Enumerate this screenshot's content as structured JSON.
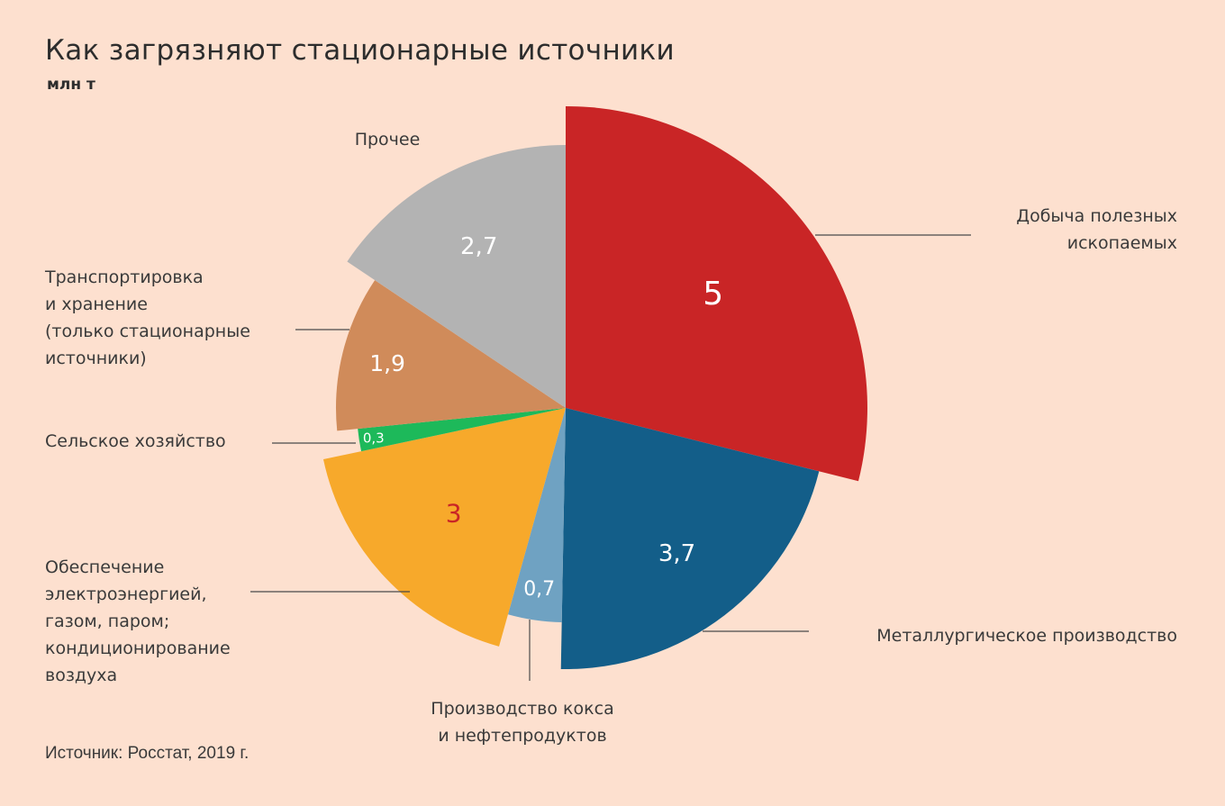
{
  "title": "Как загрязняют стационарные источники",
  "unit": "млн т",
  "source": "Источник: Росстат, 2019 г.",
  "chart_data": {
    "type": "pie",
    "title": "Как загрязняют стационарные источники",
    "unit": "млн т",
    "slices": [
      {
        "label_lines": [
          "Добыча полезных",
          "ископаемых"
        ],
        "value": 5,
        "value_label": "5",
        "color": "#c92526",
        "value_color": "#ffffff"
      },
      {
        "label_lines": [
          "Металлургическое производство"
        ],
        "value": 3.7,
        "value_label": "3,7",
        "color": "#135e89",
        "value_color": "#ffffff"
      },
      {
        "label_lines": [
          "Производство кокса",
          "и нефтепродуктов"
        ],
        "value": 0.7,
        "value_label": "0,7",
        "color": "#6fa2c2",
        "value_color": "#ffffff"
      },
      {
        "label_lines": [
          "Обеспечение",
          "электроэнергией,",
          "газом, паром;",
          "кондиционирование",
          "воздуха"
        ],
        "value": 3,
        "value_label": "3",
        "color": "#f7a92b",
        "value_color": "#c92526"
      },
      {
        "label_lines": [
          "Сельское хозяйство"
        ],
        "value": 0.3,
        "value_label": "0,3",
        "color": "#1db95a",
        "value_color": "#ffffff"
      },
      {
        "label_lines": [
          "Транспортировка",
          "и хранение",
          "(только стационарные",
          "источники)"
        ],
        "value": 1.9,
        "value_label": "1,9",
        "color": "#d08b5a",
        "value_color": "#ffffff"
      },
      {
        "label_lines": [
          "Прочее"
        ],
        "value": 2.7,
        "value_label": "2,7",
        "color": "#b3b3b3",
        "value_color": "#ffffff"
      }
    ]
  }
}
